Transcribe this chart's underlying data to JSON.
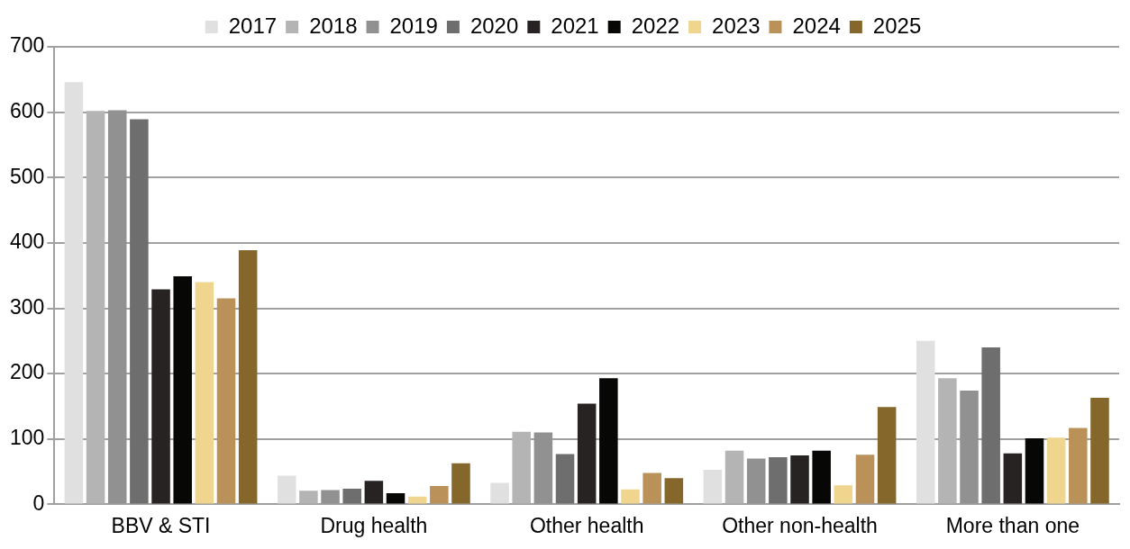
{
  "chart_data": {
    "type": "bar",
    "categories": [
      "BBV & STI",
      "Drug health",
      "Other health",
      "Other non-health",
      "More than one"
    ],
    "series": [
      {
        "name": "2017",
        "color": "#e0e0e0",
        "values": [
          646,
          44,
          33,
          53,
          250
        ]
      },
      {
        "name": "2018",
        "color": "#b4b4b4",
        "values": [
          602,
          21,
          111,
          82,
          193
        ]
      },
      {
        "name": "2019",
        "color": "#919191",
        "values": [
          603,
          22,
          110,
          70,
          174
        ]
      },
      {
        "name": "2020",
        "color": "#6e6e6e",
        "values": [
          589,
          24,
          77,
          72,
          240
        ]
      },
      {
        "name": "2021",
        "color": "#272322",
        "values": [
          329,
          36,
          154,
          75,
          78
        ]
      },
      {
        "name": "2022",
        "color": "#070706",
        "values": [
          349,
          17,
          193,
          82,
          101
        ]
      },
      {
        "name": "2023",
        "color": "#efd58d",
        "values": [
          340,
          12,
          23,
          29,
          102
        ]
      },
      {
        "name": "2024",
        "color": "#b99159",
        "values": [
          315,
          28,
          48,
          76,
          117
        ]
      },
      {
        "name": "2025",
        "color": "#85662b",
        "values": [
          389,
          63,
          40,
          149,
          163
        ]
      }
    ],
    "ylim": [
      0,
      700
    ],
    "yticks": [
      0,
      100,
      200,
      300,
      400,
      500,
      600,
      700
    ],
    "grid": "y",
    "legend": "top"
  }
}
